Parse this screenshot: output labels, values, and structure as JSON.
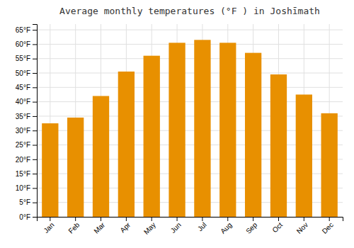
{
  "chart_data": {
    "type": "bar",
    "title": "Average monthly temperatures (°F ) in Joshīmath",
    "categories": [
      "Jan",
      "Feb",
      "Mar",
      "Apr",
      "May",
      "Jun",
      "Jul",
      "Aug",
      "Sep",
      "Oct",
      "Nov",
      "Dec"
    ],
    "values": [
      32.5,
      34.5,
      42.0,
      50.5,
      56.0,
      60.5,
      61.5,
      60.5,
      57.0,
      49.5,
      42.5,
      36.0
    ],
    "color": "#E89000",
    "ylim": [
      0,
      67
    ],
    "yticks": [
      {
        "value": 0,
        "label": "0°F"
      },
      {
        "value": 5,
        "label": "5°F"
      },
      {
        "value": 10,
        "label": "10°F"
      },
      {
        "value": 15,
        "label": "15°F"
      },
      {
        "value": 20,
        "label": "20°F"
      },
      {
        "value": 25,
        "label": "25°F"
      },
      {
        "value": 30,
        "label": "30°F"
      },
      {
        "value": 35,
        "label": "35°F"
      },
      {
        "value": 40,
        "label": "40°F"
      },
      {
        "value": 45,
        "label": "45°F"
      },
      {
        "value": 50,
        "label": "50°F"
      },
      {
        "value": 55,
        "label": "55°F"
      },
      {
        "value": 60,
        "label": "60°F"
      },
      {
        "value": 65,
        "label": "65°F"
      }
    ],
    "grid": true
  }
}
